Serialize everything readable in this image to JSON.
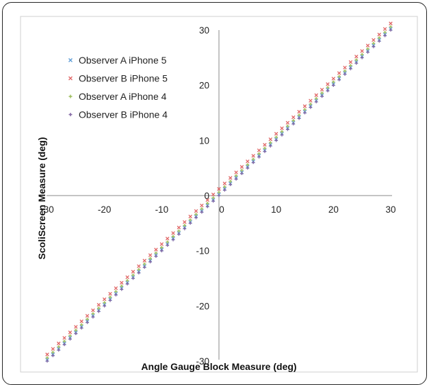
{
  "chart_data": {
    "type": "scatter",
    "title": "",
    "xlabel": "Angle Gauge Block Measure (deg)",
    "ylabel": "ScoliScreen Measure (deg)",
    "xlim": [
      -30,
      30
    ],
    "ylim": [
      -30,
      30
    ],
    "xticks": [
      -30,
      -20,
      -10,
      0,
      10,
      20,
      30
    ],
    "yticks": [
      -30,
      -20,
      -10,
      0,
      10,
      20,
      30
    ],
    "grid": false,
    "legend_position": "top-left",
    "series": [
      {
        "name": "Observer A iPhone 5",
        "marker": "x",
        "color": "#5b9bd5",
        "x_start": -30,
        "x_end": 30,
        "x_step": 1,
        "y_equals_x_offset": 0.2
      },
      {
        "name": "Observer B iPhone 5",
        "marker": "x",
        "color": "#e06666",
        "x_start": -30,
        "x_end": 30,
        "x_step": 1,
        "y_equals_x_offset": 1.2
      },
      {
        "name": "Observer A iPhone 4",
        "marker": "+",
        "color": "#9bbb59",
        "x_start": -30,
        "x_end": 30,
        "x_step": 1,
        "y_equals_x_offset": 0.6
      },
      {
        "name": "Observer B iPhone 4",
        "marker": "+",
        "color": "#8064a2",
        "x_start": -30,
        "x_end": 30,
        "x_step": 1,
        "y_equals_x_offset": 0.0
      }
    ]
  }
}
